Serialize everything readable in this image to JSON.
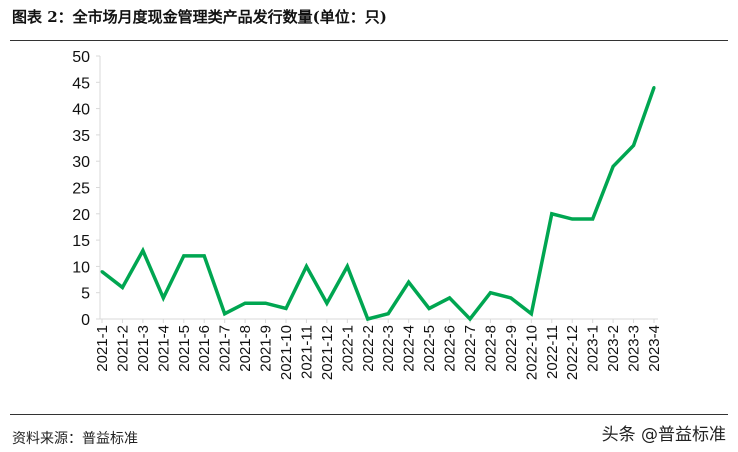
{
  "header": {
    "title": "图表 2：全市场月度现金管理类产品发行数量(单位：只)"
  },
  "footer": {
    "source": "资料来源：普益标准",
    "watermark": "头条 @普益标准"
  },
  "chart_data": {
    "type": "line",
    "title": "",
    "xlabel": "",
    "ylabel": "",
    "ylim": [
      0,
      50
    ],
    "yticks": [
      0,
      5,
      10,
      15,
      20,
      25,
      30,
      35,
      40,
      45,
      50
    ],
    "grid": false,
    "legend": "none",
    "color": "#00A651",
    "categories": [
      "2021-1",
      "2021-2",
      "2021-3",
      "2021-4",
      "2021-5",
      "2021-6",
      "2021-7",
      "2021-8",
      "2021-9",
      "2021-10",
      "2021-11",
      "2021-12",
      "2022-1",
      "2022-2",
      "2022-3",
      "2022-4",
      "2022-5",
      "2022-6",
      "2022-7",
      "2022-8",
      "2022-9",
      "2022-10",
      "2022-11",
      "2022-12",
      "2023-1",
      "2023-2",
      "2023-3",
      "2023-4"
    ],
    "values": [
      9,
      6,
      13,
      4,
      12,
      12,
      1,
      3,
      3,
      2,
      10,
      3,
      10,
      0,
      1,
      7,
      2,
      4,
      0,
      5,
      4,
      1,
      20,
      19,
      19,
      29,
      33,
      44
    ]
  }
}
